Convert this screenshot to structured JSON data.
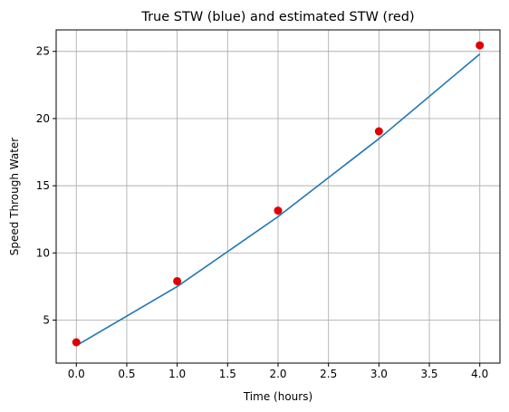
{
  "chart_data": {
    "type": "line",
    "title": "True STW (blue) and estimated STW (red)",
    "xlabel": "Time (hours)",
    "ylabel": "Speed Through Water",
    "xlim": [
      -0.2,
      4.2
    ],
    "ylim": [
      1.8,
      26.6
    ],
    "x_ticks": [
      "0.0",
      "0.5",
      "1.0",
      "1.5",
      "2.0",
      "2.5",
      "3.0",
      "3.5",
      "4.0"
    ],
    "y_ticks": [
      "5",
      "10",
      "15",
      "20",
      "25"
    ],
    "grid": true,
    "legend": "none",
    "series": [
      {
        "kind": "line",
        "color": "#1f77b4",
        "x": [
          0,
          1,
          2,
          3,
          4
        ],
        "y": [
          3.1,
          7.5,
          12.7,
          18.5,
          24.8
        ]
      },
      {
        "kind": "scatter",
        "color": "#e00000",
        "x": [
          0,
          1,
          2,
          3,
          4
        ],
        "y": [
          3.35,
          7.9,
          13.15,
          19.05,
          25.45
        ]
      }
    ]
  }
}
